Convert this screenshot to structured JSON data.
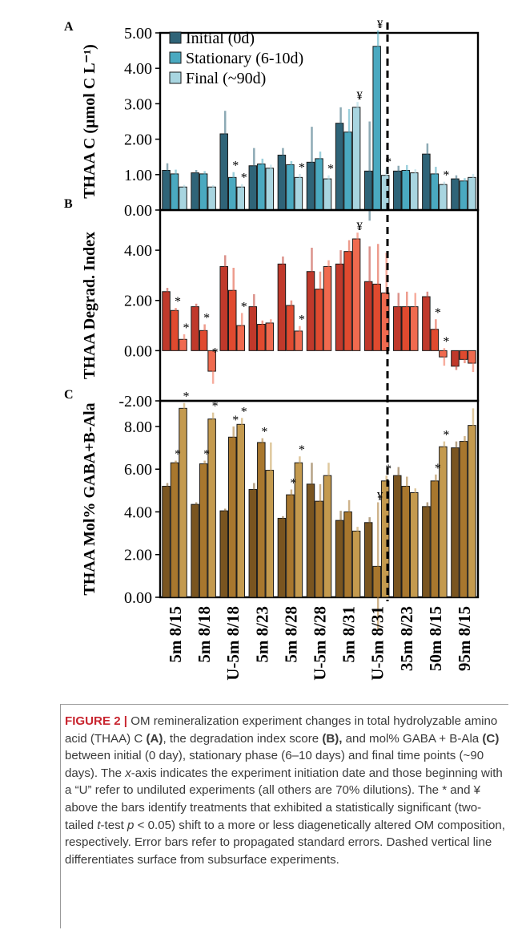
{
  "chart_data": [
    {
      "panel": "A",
      "type": "bar",
      "ylabel": "THAA C (µmol C L⁻¹)",
      "ylim": [
        0,
        5
      ],
      "yticks": [
        "0.00",
        "1.00",
        "2.00",
        "3.00",
        "4.00",
        "5.00"
      ],
      "categories": [
        "5m 8/15",
        "5m 8/18",
        "U-5m 8/18",
        "5m 8/23",
        "5m 8/28",
        "U-5m 8/28",
        "5m 8/31",
        "U-5m 8/31",
        "35m 8/23",
        "50m 8/15",
        "95m 8/15"
      ],
      "legend": [
        "Initial (0d)",
        "Stationary (6-10d)",
        "Final (~90d)"
      ],
      "legend_position": "top-left",
      "colors": [
        "#2f6478",
        "#4aa9c0",
        "#a8d5e0"
      ],
      "series": [
        {
          "name": "Initial (0d)",
          "values": [
            1.12,
            1.05,
            2.15,
            1.25,
            1.55,
            1.35,
            2.45,
            1.1,
            1.1,
            1.58,
            0.88
          ],
          "errors": [
            0.2,
            0.08,
            0.65,
            0.5,
            0.2,
            1.0,
            0.45,
            1.4,
            0.15,
            0.3,
            0.1
          ]
        },
        {
          "name": "Stationary (6-10d)",
          "values": [
            1.02,
            1.02,
            0.92,
            1.3,
            1.28,
            1.45,
            2.2,
            4.62,
            1.12,
            1.02,
            0.82
          ],
          "errors": [
            0.12,
            0.08,
            0.15,
            0.15,
            0.1,
            0.2,
            0.65,
            0.45,
            0.15,
            0.2,
            0.08
          ]
        },
        {
          "name": "Final (~90d)",
          "values": [
            0.65,
            0.65,
            0.65,
            1.18,
            0.92,
            0.88,
            2.9,
            0.98,
            1.05,
            0.72,
            0.92
          ],
          "errors": [
            0.06,
            0.05,
            0.08,
            0.1,
            0.1,
            0.1,
            0.15,
            0.2,
            0.1,
            0.08,
            0.1
          ]
        }
      ],
      "annotations": [
        {
          "category": 2,
          "series": 1,
          "text": "*"
        },
        {
          "category": 2,
          "series": 2,
          "text": "*"
        },
        {
          "category": 4,
          "series": 2,
          "text": "*"
        },
        {
          "category": 5,
          "series": 2,
          "text": "*"
        },
        {
          "category": 6,
          "series": 2,
          "text": "¥"
        },
        {
          "category": 7,
          "series": 1,
          "text": "¥"
        },
        {
          "category": 7,
          "series": 2,
          "text": "*"
        },
        {
          "category": 9,
          "series": 2,
          "text": "*"
        }
      ]
    },
    {
      "panel": "B",
      "type": "bar",
      "ylabel": "THAA Degrad. Index",
      "ylim": [
        -2,
        5.6
      ],
      "yticks": [
        "-2.00",
        "0.00",
        "2.00",
        "4.00"
      ],
      "categories": [
        "5m 8/15",
        "5m 8/18",
        "U-5m 8/18",
        "5m 8/23",
        "5m 8/28",
        "U-5m 8/28",
        "5m 8/31",
        "U-5m 8/31",
        "35m 8/23",
        "50m 8/15",
        "95m 8/15"
      ],
      "colors": [
        "#c0392b",
        "#e04a2f",
        "#f06a4f"
      ],
      "series": [
        {
          "name": "Initial (0d)",
          "values": [
            2.35,
            1.75,
            3.35,
            1.75,
            3.45,
            3.15,
            3.45,
            2.75,
            1.75,
            2.15,
            -0.62
          ],
          "errors": [
            0.15,
            0.12,
            0.45,
            0.5,
            0.3,
            0.95,
            0.55,
            1.4,
            0.55,
            0.2,
            0.15
          ]
        },
        {
          "name": "Stationary (6-10d)",
          "values": [
            1.6,
            0.8,
            2.4,
            1.05,
            1.8,
            2.45,
            3.95,
            2.65,
            1.75,
            0.85,
            -0.35
          ],
          "errors": [
            0.1,
            0.25,
            0.9,
            0.15,
            0.2,
            0.7,
            0.45,
            1.6,
            0.6,
            0.4,
            0.15
          ]
        },
        {
          "name": "Final (~90d)",
          "values": [
            0.45,
            -0.82,
            1.0,
            1.1,
            0.78,
            3.35,
            4.45,
            2.3,
            1.75,
            -0.25,
            -0.5
          ],
          "errors": [
            0.2,
            0.5,
            0.5,
            0.15,
            0.2,
            0.25,
            0.25,
            1.6,
            0.55,
            0.35,
            0.35
          ]
        }
      ],
      "annotations": [
        {
          "category": 0,
          "series": 1,
          "text": "*"
        },
        {
          "category": 0,
          "series": 2,
          "text": "*"
        },
        {
          "category": 1,
          "series": 1,
          "text": "*"
        },
        {
          "category": 1,
          "series": 2,
          "text": "*"
        },
        {
          "category": 2,
          "series": 2,
          "text": "*"
        },
        {
          "category": 4,
          "series": 2,
          "text": "*"
        },
        {
          "category": 6,
          "series": 2,
          "text": "¥"
        },
        {
          "category": 9,
          "series": 1,
          "text": "*"
        },
        {
          "category": 9,
          "series": 2,
          "text": "*"
        }
      ]
    },
    {
      "panel": "C",
      "type": "bar",
      "ylabel": "THAA Mol% GABA+B-Ala",
      "ylim": [
        0,
        9.2
      ],
      "yticks": [
        "0.00",
        "2.00",
        "4.00",
        "6.00",
        "8.00"
      ],
      "categories": [
        "5m 8/15",
        "5m 8/18",
        "U-5m 8/18",
        "5m 8/23",
        "5m 8/28",
        "U-5m 8/28",
        "5m 8/31",
        "U-5m 8/31",
        "35m 8/23",
        "50m 8/15",
        "95m 8/15"
      ],
      "colors": [
        "#7a5520",
        "#a8772e",
        "#c49a4e"
      ],
      "series": [
        {
          "name": "Initial (0d)",
          "values": [
            5.2,
            4.35,
            4.05,
            5.05,
            3.7,
            5.3,
            3.6,
            3.5,
            5.7,
            4.25,
            7.0
          ],
          "errors": [
            0.15,
            0.1,
            0.1,
            0.3,
            0.1,
            1.0,
            0.45,
            0.25,
            0.4,
            0.2,
            0.3
          ]
        },
        {
          "name": "Stationary (6-10d)",
          "values": [
            6.3,
            6.25,
            7.5,
            7.25,
            4.8,
            4.5,
            4.0,
            1.45,
            5.2,
            5.45,
            7.3
          ],
          "errors": [
            0.1,
            0.15,
            0.5,
            0.2,
            0.25,
            0.8,
            0.55,
            3.0,
            0.45,
            0.3,
            0.25
          ]
        },
        {
          "name": "Final (~90d)",
          "values": [
            8.85,
            8.35,
            8.1,
            5.95,
            6.3,
            5.7,
            3.1,
            5.45,
            4.9,
            7.05,
            8.05
          ],
          "errors": [
            0.25,
            0.3,
            0.3,
            1.3,
            0.3,
            0.6,
            0.2,
            0.25,
            0.2,
            0.25,
            0.8
          ]
        }
      ],
      "annotations": [
        {
          "category": 0,
          "series": 1,
          "text": "*"
        },
        {
          "category": 0,
          "series": 2,
          "text": "*"
        },
        {
          "category": 1,
          "series": 1,
          "text": "*"
        },
        {
          "category": 1,
          "series": 2,
          "text": "*"
        },
        {
          "category": 2,
          "series": 1,
          "text": "*"
        },
        {
          "category": 2,
          "series": 2,
          "text": "*"
        },
        {
          "category": 3,
          "series": 1,
          "text": "*"
        },
        {
          "category": 4,
          "series": 1,
          "text": "*"
        },
        {
          "category": 4,
          "series": 2,
          "text": "*"
        },
        {
          "category": 7,
          "series": 1,
          "text": "¥"
        },
        {
          "category": 7,
          "series": 2,
          "text": "*"
        },
        {
          "category": 9,
          "series": 1,
          "text": "*"
        },
        {
          "category": 9,
          "series": 2,
          "text": "*"
        }
      ]
    }
  ],
  "caption": {
    "label": "FIGURE 2 |",
    "part1": " OM remineralization experiment changes in total hydrolyzable amino acid (THAA) C ",
    "a": "(A)",
    "part2": ", the degradation index score ",
    "b": "(B),",
    "part3": " and mol% GABA + B-Ala ",
    "c": "(C)",
    "part4": " between initial (0 day), stationary phase (6–10 days) and final time points (~90 days). The ",
    "x": "x",
    "part5": "-axis indicates the experiment initiation date and those beginning with a “U” refer to undiluted experiments (all others are 70% dilutions). The * and ¥ above the bars identify treatments that exhibited a statistically significant (two-tailed ",
    "t": "t",
    "part6": "-test ",
    "p": "p",
    "part7": " < 0.05) shift to a more or less diagenetically altered OM composition, respectively. Error bars refer to propagated standard errors. Dashed vertical line differentiates surface from subsurface experiments."
  }
}
